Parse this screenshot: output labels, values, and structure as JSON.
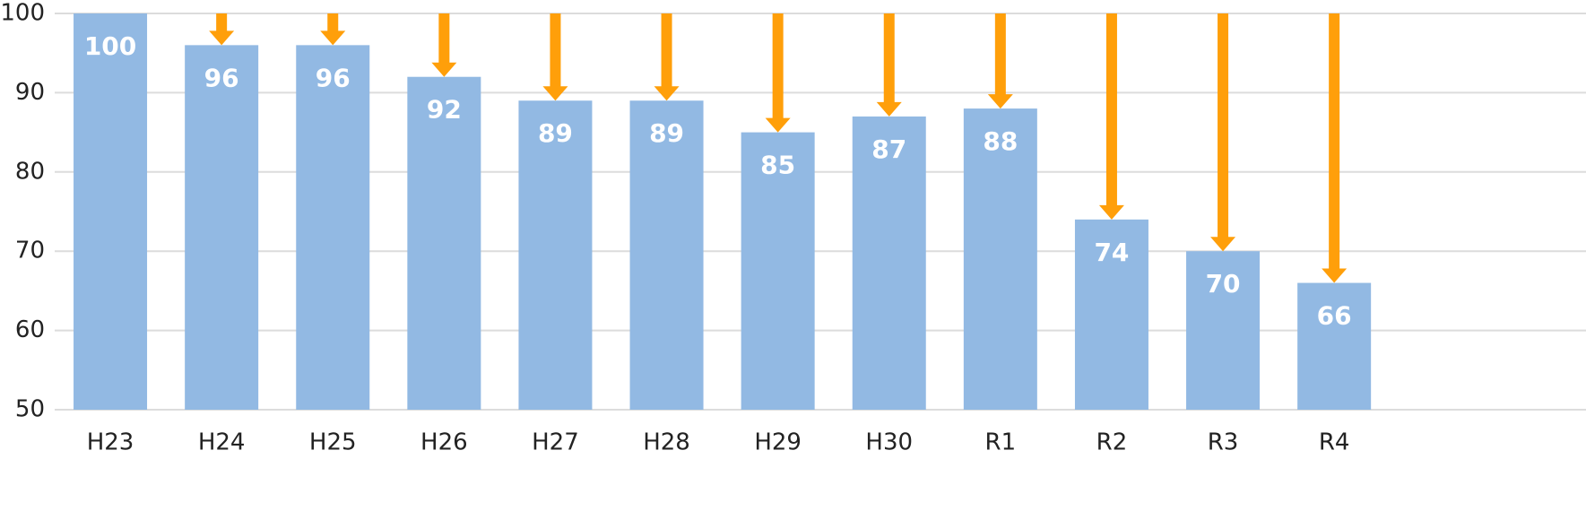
{
  "chart_data": {
    "type": "bar",
    "categories": [
      "H23",
      "H24",
      "H25",
      "H26",
      "H27",
      "H28",
      "H29",
      "H30",
      "R1",
      "R2",
      "R3",
      "R4"
    ],
    "values": [
      100,
      96,
      96,
      92,
      89,
      89,
      85,
      87,
      88,
      74,
      70,
      66
    ],
    "color": "#92b9e3",
    "arrow_color": "#ff9f0a",
    "ylim": [
      50,
      100
    ],
    "yticks": [
      50,
      60,
      70,
      80,
      90,
      100
    ],
    "grid": true
  }
}
